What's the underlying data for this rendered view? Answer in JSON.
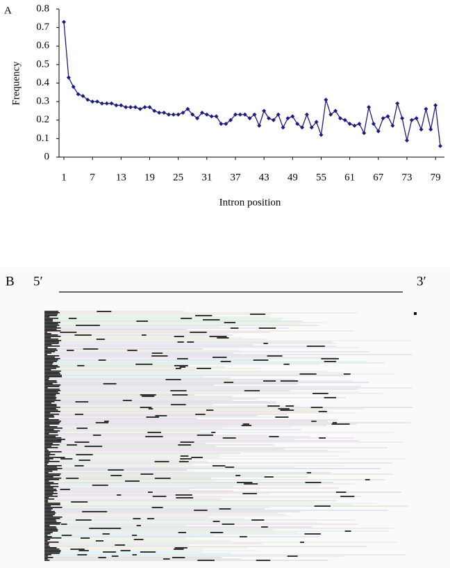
{
  "panel_a": {
    "label": "A"
  },
  "chart_data": {
    "type": "line",
    "x_label": "Intron position",
    "y_label": "Frequency",
    "x": [
      1,
      2,
      3,
      4,
      5,
      6,
      7,
      8,
      9,
      10,
      11,
      12,
      13,
      14,
      15,
      16,
      17,
      18,
      19,
      20,
      21,
      22,
      23,
      24,
      25,
      26,
      27,
      28,
      29,
      30,
      31,
      32,
      33,
      34,
      35,
      36,
      37,
      38,
      39,
      40,
      41,
      42,
      43,
      44,
      45,
      46,
      47,
      48,
      49,
      50,
      51,
      52,
      53,
      54,
      55,
      56,
      57,
      58,
      59,
      60,
      61,
      62,
      63,
      64,
      65,
      66,
      67,
      68,
      69,
      70,
      71,
      72,
      73,
      74,
      75,
      76,
      77,
      78,
      79,
      80
    ],
    "series": [
      {
        "name": "Frequency",
        "color": "#1c1c80",
        "values": [
          0.73,
          0.43,
          0.38,
          0.34,
          0.33,
          0.31,
          0.3,
          0.3,
          0.29,
          0.29,
          0.29,
          0.28,
          0.28,
          0.27,
          0.27,
          0.27,
          0.26,
          0.27,
          0.27,
          0.25,
          0.24,
          0.24,
          0.23,
          0.23,
          0.23,
          0.24,
          0.26,
          0.23,
          0.21,
          0.24,
          0.23,
          0.22,
          0.22,
          0.18,
          0.18,
          0.2,
          0.23,
          0.23,
          0.23,
          0.21,
          0.23,
          0.17,
          0.25,
          0.21,
          0.2,
          0.23,
          0.16,
          0.21,
          0.22,
          0.18,
          0.16,
          0.23,
          0.16,
          0.19,
          0.12,
          0.31,
          0.23,
          0.25,
          0.21,
          0.2,
          0.18,
          0.17,
          0.18,
          0.13,
          0.27,
          0.18,
          0.14,
          0.21,
          0.22,
          0.17,
          0.29,
          0.21,
          0.09,
          0.2,
          0.21,
          0.15,
          0.26,
          0.15,
          0.28,
          0.06
        ]
      }
    ],
    "xlim": [
      1,
      80
    ],
    "xticks": [
      1,
      7,
      13,
      19,
      25,
      31,
      37,
      43,
      49,
      55,
      61,
      67,
      73,
      79
    ],
    "ylim": [
      0,
      0.8
    ],
    "yticks": [
      0,
      0.1,
      0.2,
      0.3,
      0.4,
      0.5,
      0.6,
      0.7,
      0.8
    ]
  },
  "panel_b": {
    "label": "B",
    "five_prime": "5′",
    "three_prime": "3′"
  }
}
